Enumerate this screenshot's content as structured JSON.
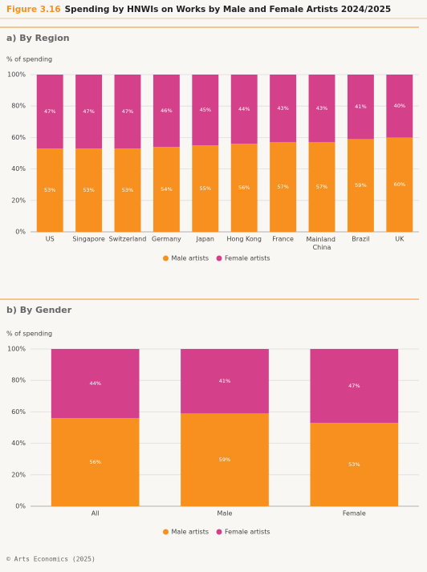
{
  "header": {
    "figure": "Figure 3.16",
    "title": "Spending by HNWIs on Works by Male and Female Artists 2024/2025"
  },
  "chart_data": [
    {
      "type": "bar",
      "stacked": true,
      "subtitle": "a) By Region",
      "ylabel": "% of spending",
      "categories": [
        "US",
        "Singapore",
        "Switzerland",
        "Germany",
        "Japan",
        "Hong Kong",
        "France",
        "Mainland China",
        "Brazil",
        "UK"
      ],
      "series": [
        {
          "name": "Male artists",
          "color": "#f7901e",
          "values": [
            53,
            53,
            53,
            54,
            55,
            56,
            57,
            57,
            59,
            60
          ],
          "value_labels": [
            "53%",
            "53%",
            "53%",
            "54%",
            "55%",
            "56%",
            "57%",
            "57%",
            "59%",
            "60%"
          ]
        },
        {
          "name": "Female artists",
          "color": "#d5408b",
          "values": [
            47,
            47,
            47,
            46,
            45,
            44,
            43,
            43,
            41,
            40
          ],
          "value_labels": [
            "47%",
            "47%",
            "47%",
            "46%",
            "45%",
            "44%",
            "43%",
            "43%",
            "41%",
            "40%"
          ]
        }
      ],
      "ylim": [
        0,
        100
      ],
      "yticks": [
        {
          "value": 0,
          "label": "0%"
        },
        {
          "value": 20,
          "label": "20%"
        },
        {
          "value": 40,
          "label": "40%"
        },
        {
          "value": 60,
          "label": "60%"
        },
        {
          "value": 80,
          "label": "80%"
        },
        {
          "value": 100,
          "label": "100%"
        }
      ],
      "grid": true,
      "legend": "bottom"
    },
    {
      "type": "bar",
      "stacked": true,
      "subtitle": "b) By Gender",
      "ylabel": "% of spending",
      "categories": [
        "All",
        "Male",
        "Female"
      ],
      "series": [
        {
          "name": "Male artists",
          "color": "#f7901e",
          "values": [
            56,
            59,
            53
          ],
          "value_labels": [
            "56%",
            "59%",
            "53%"
          ]
        },
        {
          "name": "Female artists",
          "color": "#d5408b",
          "values": [
            44,
            41,
            47
          ],
          "value_labels": [
            "44%",
            "41%",
            "47%"
          ]
        }
      ],
      "ylim": [
        0,
        100
      ],
      "yticks": [
        {
          "value": 0,
          "label": "0%"
        },
        {
          "value": 20,
          "label": "20%"
        },
        {
          "value": 40,
          "label": "40%"
        },
        {
          "value": 60,
          "label": "60%"
        },
        {
          "value": 80,
          "label": "80%"
        },
        {
          "value": 100,
          "label": "100%"
        }
      ],
      "grid": true,
      "legend": "bottom"
    }
  ],
  "footer": "© Arts Economics (2025)"
}
